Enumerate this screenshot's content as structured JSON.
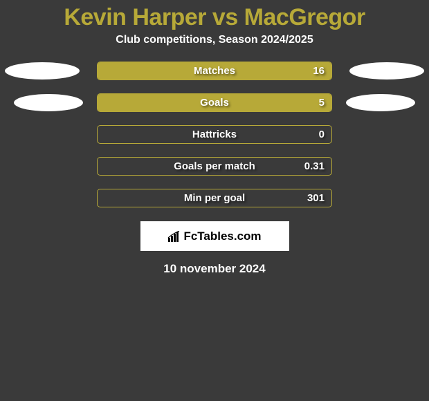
{
  "title_color": "#b7a938",
  "title": "Kevin Harper vs MacGregor",
  "subtitle": "Club competitions, Season 2024/2025",
  "bar_fill_color": "#b7a938",
  "bar_border_color": "#b7a938",
  "background_color": "#3a3a3a",
  "ellipse_color": "#ffffff",
  "rows": [
    {
      "label": "Matches",
      "value": "16",
      "fill_pct": 100,
      "ellipse_left": "big",
      "ellipse_right": "big"
    },
    {
      "label": "Goals",
      "value": "5",
      "fill_pct": 100,
      "ellipse_left": "small",
      "ellipse_right": "small"
    },
    {
      "label": "Hattricks",
      "value": "0",
      "fill_pct": 0,
      "ellipse_left": null,
      "ellipse_right": null
    },
    {
      "label": "Goals per match",
      "value": "0.31",
      "fill_pct": 0,
      "ellipse_left": null,
      "ellipse_right": null
    },
    {
      "label": "Min per goal",
      "value": "301",
      "fill_pct": 0,
      "ellipse_left": null,
      "ellipse_right": null
    }
  ],
  "logo_text": "FcTables.com",
  "date": "10 november 2024"
}
